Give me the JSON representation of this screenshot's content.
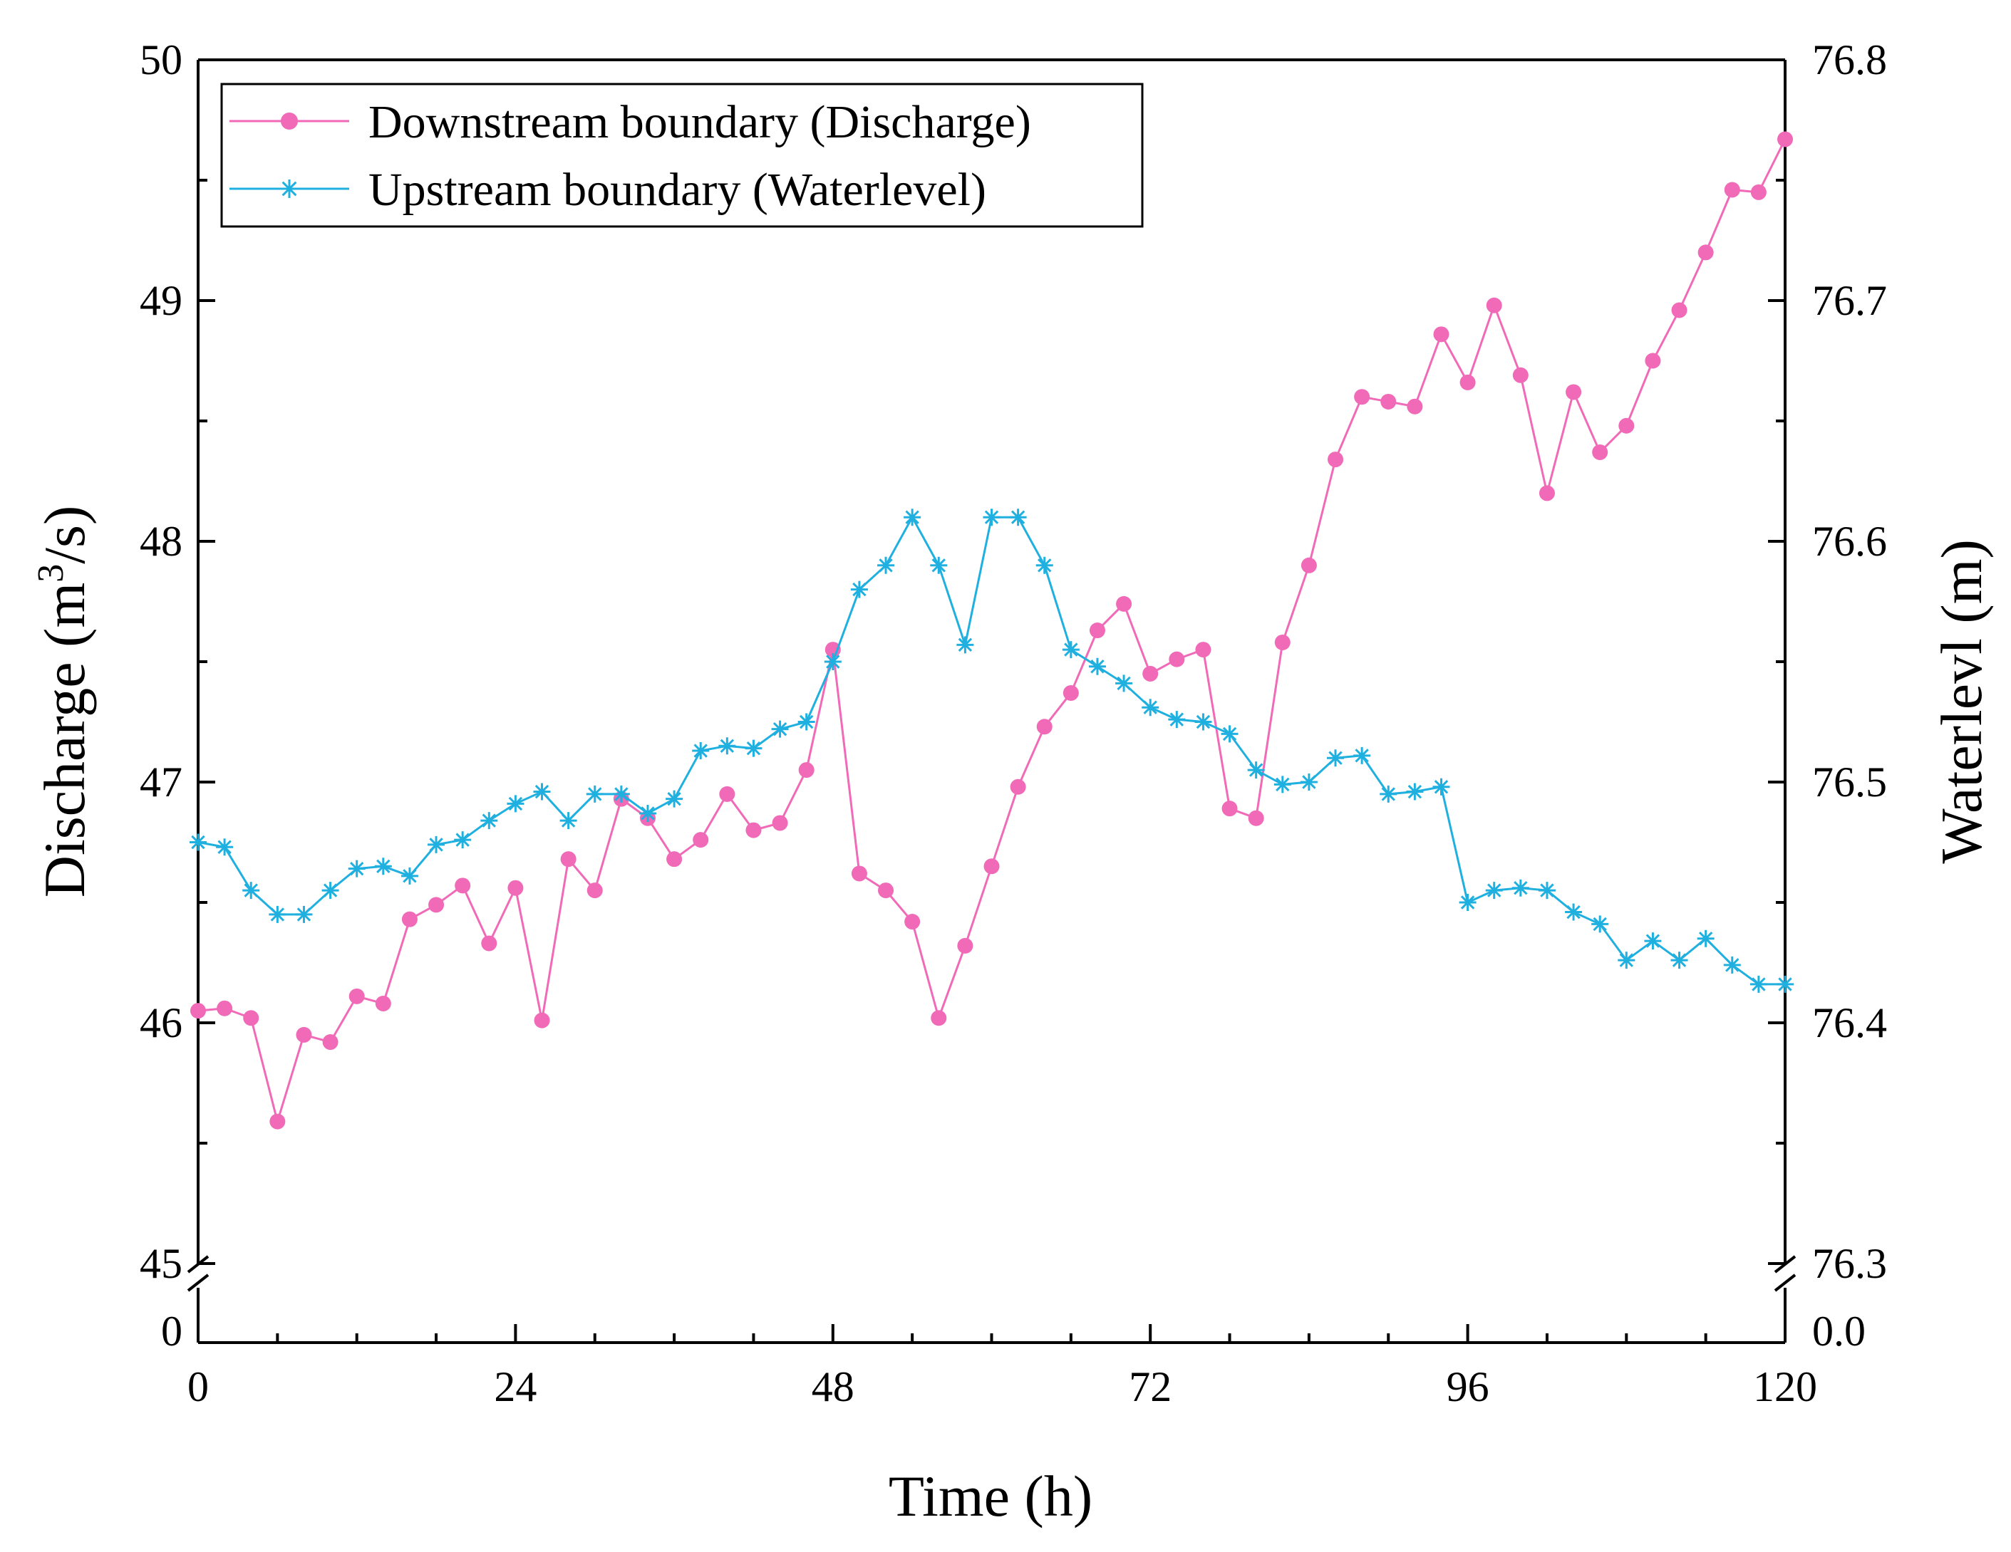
{
  "chart_data": {
    "type": "line",
    "title": "",
    "xlabel": "Time (h)",
    "ylabel_left_main": "Discharge (m",
    "ylabel_left_sup": "3",
    "ylabel_left_tail": "/s)",
    "ylabel_right": "Waterlevl (m)",
    "xlim": [
      0,
      120
    ],
    "x_ticks": [
      "0",
      "24",
      "48",
      "72",
      "96",
      "120"
    ],
    "x_tick_values": [
      0,
      24,
      48,
      72,
      96,
      120
    ],
    "y_left_lim": [
      45,
      50
    ],
    "y_left_ticks": [
      "45",
      "46",
      "47",
      "48",
      "49",
      "50"
    ],
    "y_left_break_tick": "0",
    "y_right_lim": [
      76.3,
      76.8
    ],
    "y_right_ticks": [
      "76.3",
      "76.4",
      "76.5",
      "76.6",
      "76.7",
      "76.8"
    ],
    "y_right_break_tick": "0.0",
    "legend_position": "top-left",
    "colors": {
      "discharge": "#f06ab8",
      "waterlevel": "#1fb0e0"
    },
    "series": [
      {
        "name": "Downstream boundary (Discharge)",
        "axis": "left",
        "marker": "circle",
        "x": [
          0,
          2,
          4,
          6,
          8,
          10,
          12,
          14,
          16,
          18,
          20,
          22,
          24,
          26,
          28,
          30,
          32,
          34,
          36,
          38,
          40,
          42,
          44,
          46,
          48,
          50,
          52,
          54,
          56,
          58,
          60,
          62,
          64,
          66,
          68,
          70,
          72,
          74,
          76,
          78,
          80,
          82,
          84,
          86,
          88,
          90,
          92,
          94,
          96,
          98,
          100,
          102,
          104,
          106,
          108,
          110,
          112,
          114,
          116,
          118,
          120
        ],
        "values": [
          46.05,
          46.06,
          46.02,
          45.59,
          45.95,
          45.92,
          46.11,
          46.08,
          46.43,
          46.49,
          46.57,
          46.33,
          46.56,
          46.01,
          46.68,
          46.55,
          46.93,
          46.85,
          46.68,
          46.76,
          46.95,
          46.8,
          46.83,
          47.05,
          47.55,
          46.62,
          46.55,
          46.42,
          46.02,
          46.32,
          46.65,
          46.98,
          47.23,
          47.37,
          47.63,
          47.74,
          47.45,
          47.51,
          47.55,
          46.89,
          46.85,
          47.58,
          47.9,
          48.34,
          48.6,
          48.58,
          48.56,
          48.86,
          48.66,
          48.98,
          48.69,
          48.2,
          48.62,
          48.37,
          48.48,
          48.75,
          48.96,
          49.2,
          49.46,
          49.45,
          49.67
        ]
      },
      {
        "name": "Upstream boundary (Waterlevel)",
        "axis": "right",
        "marker": "star",
        "x": [
          0,
          2,
          4,
          6,
          8,
          10,
          12,
          14,
          16,
          18,
          20,
          22,
          24,
          26,
          28,
          30,
          32,
          34,
          36,
          38,
          40,
          42,
          44,
          46,
          48,
          50,
          52,
          54,
          56,
          58,
          60,
          62,
          64,
          66,
          68,
          70,
          72,
          74,
          76,
          78,
          80,
          82,
          84,
          86,
          88,
          90,
          92,
          94,
          96,
          98,
          100,
          102,
          104,
          106,
          108,
          110,
          112,
          114,
          116,
          118,
          120
        ],
        "values": [
          76.475,
          76.473,
          76.455,
          76.445,
          76.445,
          76.455,
          76.464,
          76.465,
          76.461,
          76.474,
          76.476,
          76.484,
          76.491,
          76.496,
          76.484,
          76.495,
          76.495,
          76.487,
          76.493,
          76.513,
          76.515,
          76.514,
          76.522,
          76.525,
          76.55,
          76.58,
          76.59,
          76.61,
          76.59,
          76.557,
          76.61,
          76.61,
          76.59,
          76.555,
          76.548,
          76.541,
          76.531,
          76.526,
          76.525,
          76.52,
          76.505,
          76.499,
          76.5,
          76.51,
          76.511,
          76.495,
          76.496,
          76.498,
          76.45,
          76.455,
          76.456,
          76.455,
          76.446,
          76.441,
          76.426,
          76.434,
          76.426,
          76.435,
          76.424,
          76.416,
          76.416
        ]
      }
    ]
  }
}
